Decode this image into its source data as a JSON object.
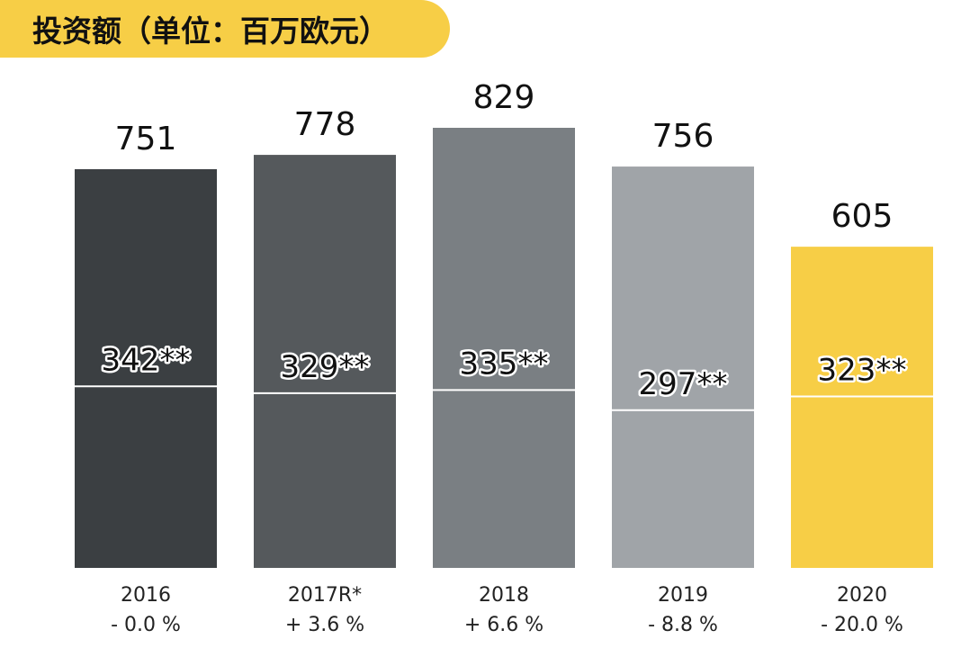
{
  "title": "投资额（单位：百万欧元）",
  "chart_data": {
    "type": "bar",
    "title": "投资额（单位：百万欧元）",
    "categories": [
      "2016",
      "2017R*",
      "2018",
      "2019",
      "2020"
    ],
    "values": [
      751,
      778,
      829,
      756,
      605
    ],
    "value_labels": [
      "751",
      "778",
      "829",
      "756",
      "605"
    ],
    "inner_values": [
      342,
      329,
      335,
      297,
      323
    ],
    "inner_labels": [
      "342**",
      "329**",
      "335**",
      "297**",
      "323**"
    ],
    "changes": [
      "- 0.0 %",
      "+ 3.6 %",
      "+ 6.6 %",
      "- 8.8 %",
      "- 20.0 %"
    ],
    "colors": [
      "#3b3f42",
      "#55595c",
      "#7a7f83",
      "#a0a4a8",
      "#f7ce46"
    ],
    "accent": "#f7ce46",
    "ylim": [
      0,
      900
    ],
    "grid": false,
    "legend": "none"
  }
}
